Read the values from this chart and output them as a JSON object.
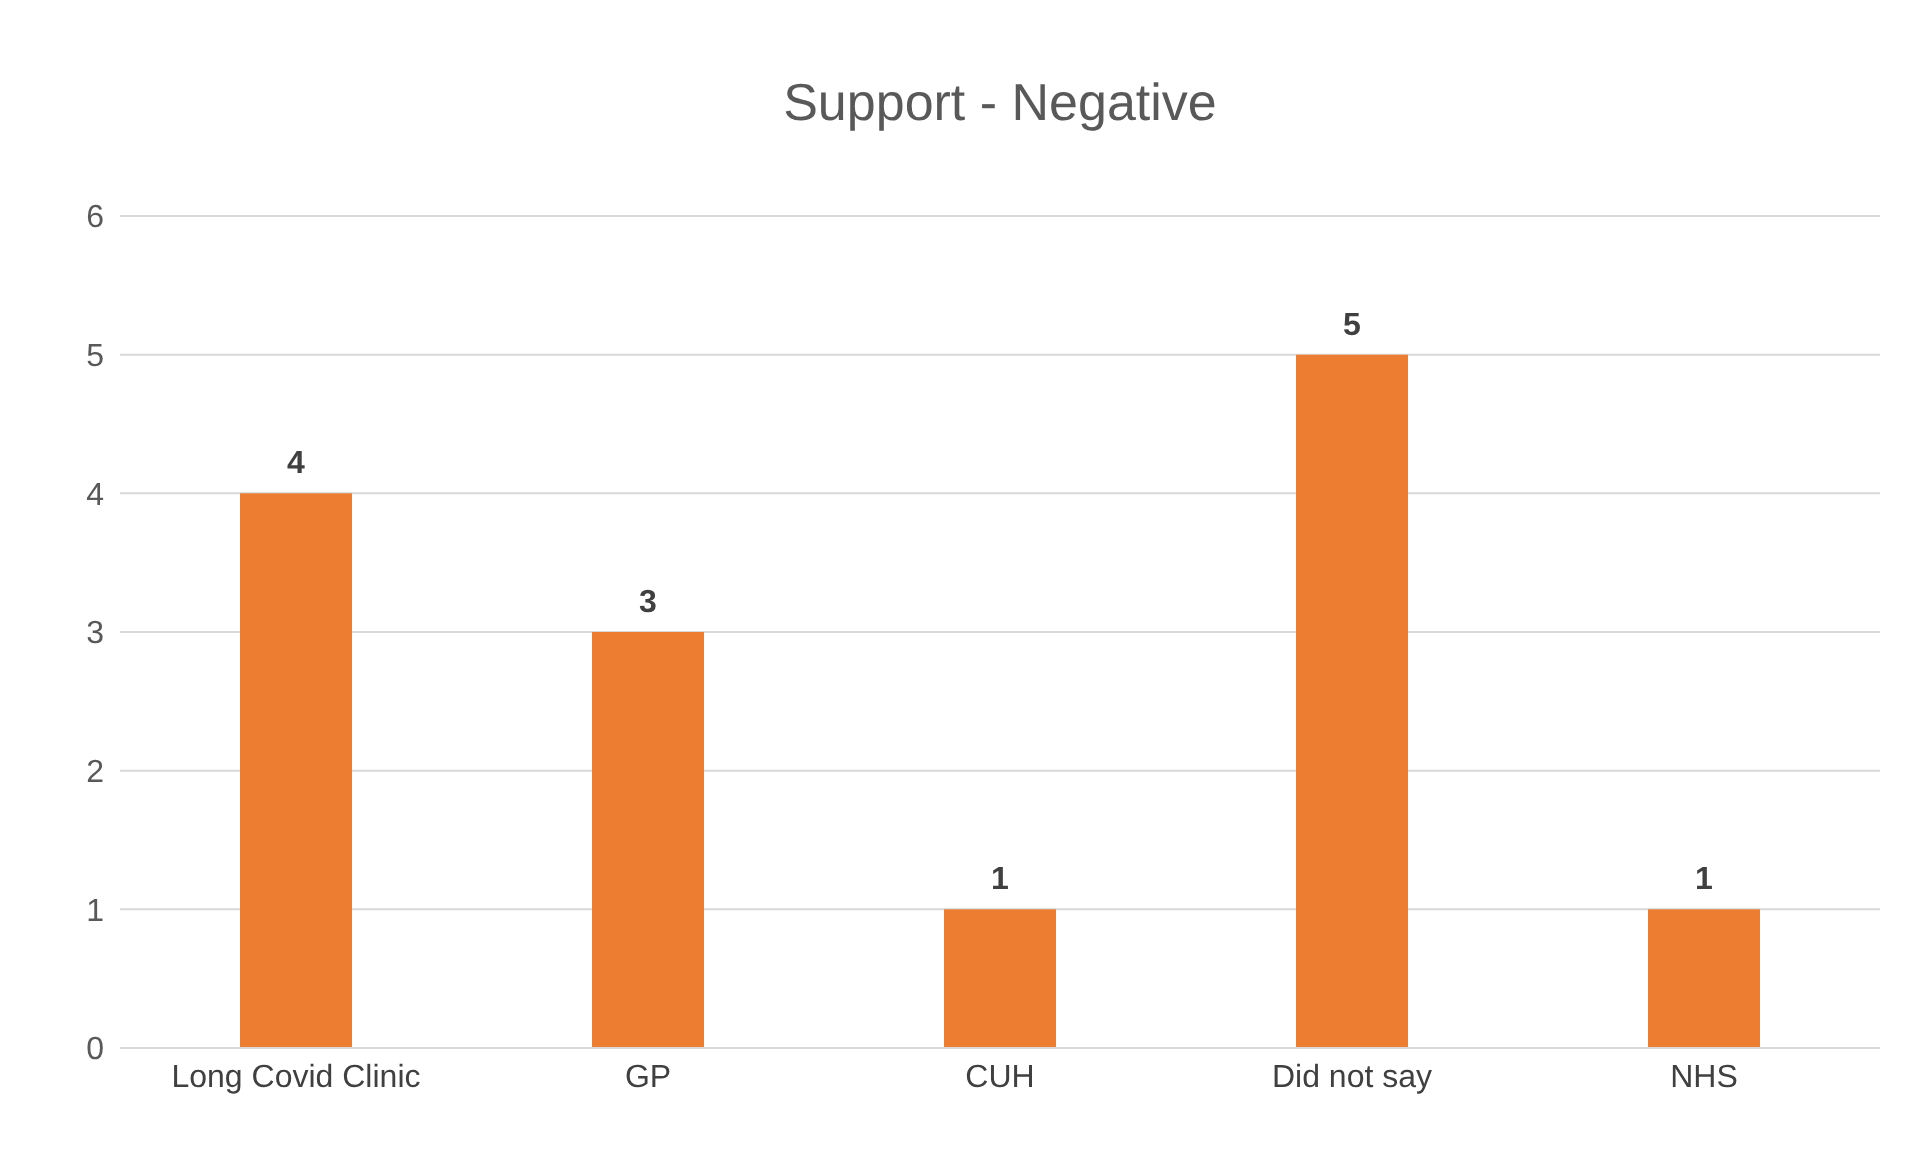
{
  "chart_data": {
    "type": "bar",
    "title": "Support - Negative",
    "categories": [
      "Long Covid Clinic",
      "GP",
      "CUH",
      "Did not say",
      "NHS"
    ],
    "values": [
      4,
      3,
      1,
      5,
      1
    ],
    "color": "#ed7d31",
    "ylim": [
      0,
      6
    ],
    "yticks": [
      0,
      1,
      2,
      3,
      4,
      5,
      6
    ],
    "grid": "y",
    "data_labels": true
  }
}
